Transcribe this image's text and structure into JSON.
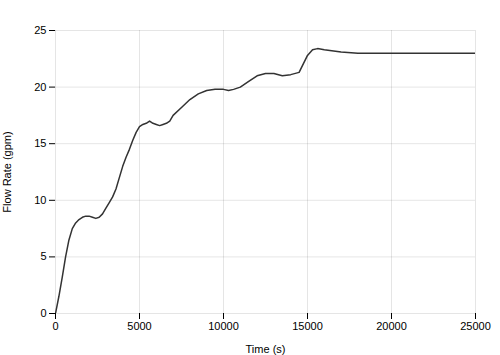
{
  "chart_data": {
    "type": "line",
    "xlabel": "Time (s)",
    "ylabel": "Flow Rate (gpm)",
    "x": [
      0,
      200,
      400,
      600,
      800,
      1000,
      1200,
      1400,
      1600,
      1800,
      2000,
      2200,
      2400,
      2600,
      2800,
      3000,
      3200,
      3400,
      3600,
      3800,
      4000,
      4200,
      4400,
      4600,
      4800,
      5000,
      5200,
      5400,
      5600,
      5800,
      6000,
      6200,
      6400,
      6600,
      6800,
      7000,
      7500,
      8000,
      8500,
      9000,
      9500,
      10000,
      10300,
      10600,
      11000,
      11500,
      12000,
      12500,
      13000,
      13500,
      14000,
      14500,
      15000,
      15300,
      15600,
      16000,
      17000,
      18000,
      19000,
      20000,
      21000,
      22000,
      23000,
      24000,
      25000
    ],
    "values": [
      0.0,
      1.5,
      3.2,
      5.0,
      6.5,
      7.5,
      8.0,
      8.3,
      8.5,
      8.6,
      8.6,
      8.5,
      8.4,
      8.5,
      8.8,
      9.3,
      9.8,
      10.3,
      11.0,
      12.0,
      13.0,
      13.8,
      14.5,
      15.3,
      16.0,
      16.5,
      16.7,
      16.8,
      17.0,
      16.8,
      16.7,
      16.6,
      16.7,
      16.8,
      17.0,
      17.5,
      18.2,
      18.9,
      19.4,
      19.7,
      19.8,
      19.8,
      19.7,
      19.8,
      20.0,
      20.5,
      21.0,
      21.2,
      21.2,
      21.0,
      21.1,
      21.3,
      22.8,
      23.3,
      23.4,
      23.3,
      23.1,
      23.0,
      23.0,
      23.0,
      23.0,
      23.0,
      23.0,
      23.0,
      23.0
    ],
    "color": "#333333",
    "xlim": [
      0,
      25000
    ],
    "ylim": [
      0,
      25
    ],
    "xticks": [
      0,
      5000,
      10000,
      15000,
      20000,
      25000
    ],
    "yticks": [
      0,
      5,
      10,
      15,
      20,
      25
    ],
    "grid": true
  }
}
